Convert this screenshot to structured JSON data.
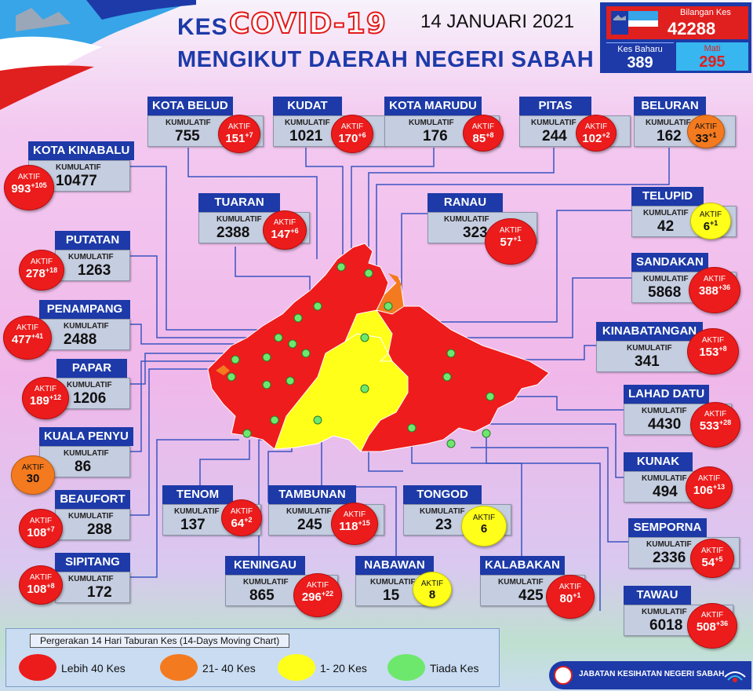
{
  "header": {
    "kes": "KES",
    "covid": "COVID-19",
    "subtitle": "MENGIKUT DAERAH NEGERI SABAH",
    "date": "14 JANUARI 2021"
  },
  "summary": {
    "bilangan_label": "Bilangan Kes",
    "bilangan_value": "42288",
    "baru_label": "Kes Baharu",
    "baru_value": "389",
    "mati_label": "Mati",
    "mati_value": "295"
  },
  "kumulatif_label": "KUMULATIF",
  "aktif_label": "AKTIF",
  "districts": [
    {
      "name": "KOTA BELUD",
      "kumulatif": "755",
      "aktif": "151",
      "baru": "+7",
      "level": "red"
    },
    {
      "name": "KUDAT",
      "kumulatif": "1021",
      "aktif": "170",
      "baru": "+6",
      "level": "red"
    },
    {
      "name": "KOTA MARUDU",
      "kumulatif": "176",
      "aktif": "85",
      "baru": "+8",
      "level": "red"
    },
    {
      "name": "PITAS",
      "kumulatif": "244",
      "aktif": "102",
      "baru": "+2",
      "level": "red"
    },
    {
      "name": "BELURAN",
      "kumulatif": "162",
      "aktif": "33",
      "baru": "+1",
      "level": "orange"
    },
    {
      "name": "KOTA KINABALU",
      "kumulatif": "10477",
      "aktif": "993",
      "baru": "+105",
      "level": "red"
    },
    {
      "name": "TUARAN",
      "kumulatif": "2388",
      "aktif": "147",
      "baru": "+6",
      "level": "red"
    },
    {
      "name": "RANAU",
      "kumulatif": "323",
      "aktif": "57",
      "baru": "+1",
      "level": "red"
    },
    {
      "name": "TELUPID",
      "kumulatif": "42",
      "aktif": "6",
      "baru": "+1",
      "level": "yellow"
    },
    {
      "name": "PUTATAN",
      "kumulatif": "1263",
      "aktif": "278",
      "baru": "+18",
      "level": "red"
    },
    {
      "name": "SANDAKAN",
      "kumulatif": "5868",
      "aktif": "388",
      "baru": "+36",
      "level": "red"
    },
    {
      "name": "PENAMPANG",
      "kumulatif": "2488",
      "aktif": "477",
      "baru": "+41",
      "level": "red"
    },
    {
      "name": "KINABATANGAN",
      "kumulatif": "341",
      "aktif": "153",
      "baru": "+8",
      "level": "red"
    },
    {
      "name": "PAPAR",
      "kumulatif": "1206",
      "aktif": "189",
      "baru": "+12",
      "level": "red"
    },
    {
      "name": "LAHAD DATU",
      "kumulatif": "4430",
      "aktif": "533",
      "baru": "+28",
      "level": "red"
    },
    {
      "name": "KUALA PENYU",
      "kumulatif": "86",
      "aktif": "30",
      "baru": "",
      "level": "orange"
    },
    {
      "name": "KUNAK",
      "kumulatif": "494",
      "aktif": "106",
      "baru": "+13",
      "level": "red"
    },
    {
      "name": "TENOM",
      "kumulatif": "137",
      "aktif": "64",
      "baru": "+2",
      "level": "red"
    },
    {
      "name": "TAMBUNAN",
      "kumulatif": "245",
      "aktif": "118",
      "baru": "+15",
      "level": "red"
    },
    {
      "name": "TONGOD",
      "kumulatif": "23",
      "aktif": "6",
      "baru": "",
      "level": "yellow"
    },
    {
      "name": "BEAUFORT",
      "kumulatif": "288",
      "aktif": "108",
      "baru": "+7",
      "level": "red"
    },
    {
      "name": "SEMPORNA",
      "kumulatif": "2336",
      "aktif": "54",
      "baru": "+5",
      "level": "red"
    },
    {
      "name": "SIPITANG",
      "kumulatif": "172",
      "aktif": "108",
      "baru": "+8",
      "level": "red"
    },
    {
      "name": "KENINGAU",
      "kumulatif": "865",
      "aktif": "296",
      "baru": "+22",
      "level": "red"
    },
    {
      "name": "NABAWAN",
      "kumulatif": "15",
      "aktif": "8",
      "baru": "",
      "level": "yellow"
    },
    {
      "name": "KALABAKAN",
      "kumulatif": "425",
      "aktif": "80",
      "baru": "+1",
      "level": "red"
    },
    {
      "name": "TAWAU",
      "kumulatif": "6018",
      "aktif": "508",
      "baru": "+36",
      "level": "red"
    }
  ],
  "legend": {
    "title": "Pergerakan 14 Hari Taburan Kes (14-Days Moving Chart)",
    "items": [
      {
        "label": "Lebih 40 Kes",
        "color": "#ec1c1c"
      },
      {
        "label": "21- 40 Kes",
        "color": "#f47a1f"
      },
      {
        "label": "1- 20 Kes",
        "color": "#ffff1a"
      },
      {
        "label": "Tiada Kes",
        "color": "#6de86d"
      }
    ]
  },
  "footer": {
    "text": "JABATAN KESIHATAN NEGERI SABAH"
  },
  "colors": {
    "primary": "#1d3aa8",
    "red": "#ec1c1c",
    "orange": "#f47a1f",
    "yellow": "#ffff1a",
    "green": "#6de86d",
    "light_blue": "#37b6f0"
  }
}
